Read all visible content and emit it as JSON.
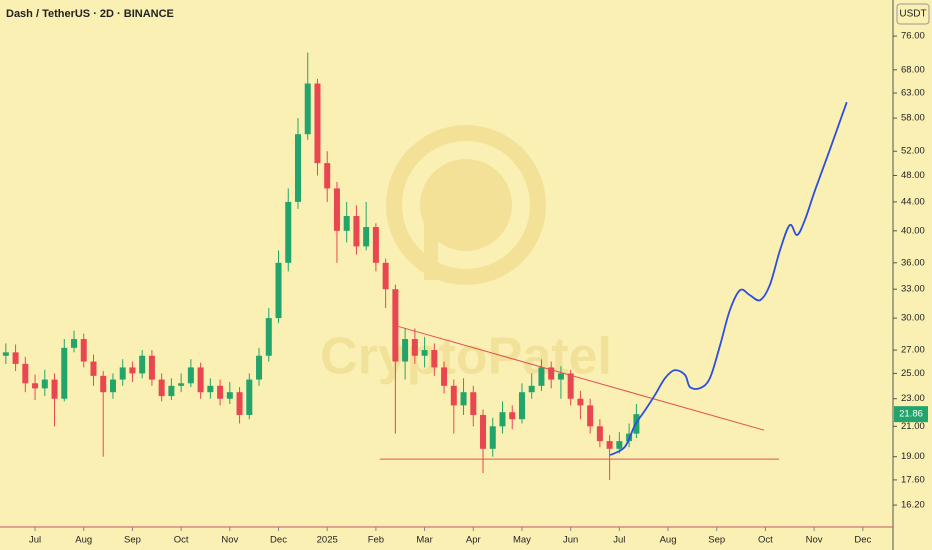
{
  "chart_data": {
    "type": "candlestick",
    "title": "Dash / TetherUS · 2D · BINANCE",
    "currency": "USDT",
    "watermark": "CryptoPatel",
    "log_scale": true,
    "up_color": "#22a46b",
    "down_color": "#e8474f",
    "x": [
      -0.6,
      -0.4,
      -0.2,
      0.0,
      0.2,
      0.4,
      0.6,
      0.8,
      1.0,
      1.2,
      1.4,
      1.6,
      1.8,
      2.0,
      2.2,
      2.4,
      2.6,
      2.8,
      3.0,
      3.2,
      3.4,
      3.6,
      3.8,
      4.0,
      4.2,
      4.4,
      4.6,
      4.8,
      5.0,
      5.2,
      5.4,
      5.6,
      5.8,
      6.0,
      6.2,
      6.4,
      6.6,
      6.8,
      7.0,
      7.2,
      7.4,
      7.6,
      7.8,
      8.0,
      8.2,
      8.4,
      8.6,
      8.8,
      9.0,
      9.2,
      9.4,
      9.6,
      9.8,
      10.0,
      10.2,
      10.4,
      10.6,
      10.8,
      11.0,
      11.2,
      11.4,
      11.6,
      11.8,
      12.0,
      12.2,
      12.35
    ],
    "open": [
      26.5,
      26.8,
      25.8,
      24.2,
      23.8,
      24.5,
      23.0,
      27.2,
      28.0,
      26.0,
      24.8,
      23.5,
      24.5,
      25.5,
      25.0,
      26.5,
      24.5,
      23.2,
      24.0,
      24.2,
      25.5,
      23.5,
      24.0,
      23.0,
      23.5,
      21.8,
      24.5,
      26.5,
      30.0,
      36.0,
      44.0,
      55.0,
      65.0,
      50.0,
      46.0,
      40.0,
      42.0,
      38.0,
      40.5,
      36.0,
      33.0,
      26.0,
      28.0,
      26.5,
      27.0,
      25.5,
      24.0,
      22.5,
      23.5,
      21.8,
      19.5,
      21.0,
      22.0,
      21.5,
      23.5,
      24.0,
      25.5,
      24.5,
      25.0,
      23.0,
      22.5,
      21.0,
      20.0,
      19.5,
      20.0,
      20.5
    ],
    "high": [
      27.6,
      27.5,
      26.4,
      24.9,
      25.3,
      25.0,
      28.0,
      28.8,
      28.5,
      26.6,
      25.2,
      25.0,
      26.2,
      26.0,
      27.0,
      27.0,
      25.0,
      24.6,
      25.0,
      26.2,
      25.9,
      24.6,
      24.5,
      24.3,
      23.9,
      25.0,
      27.2,
      31.0,
      37.5,
      46.0,
      58.0,
      72.0,
      66.0,
      52.0,
      47.0,
      44.0,
      43.5,
      44.0,
      41.0,
      36.5,
      33.5,
      29.0,
      29.0,
      28.2,
      27.6,
      26.0,
      24.5,
      24.6,
      24.0,
      22.2,
      21.6,
      22.8,
      22.5,
      24.2,
      25.0,
      26.2,
      26.0,
      25.6,
      25.3,
      23.6,
      23.0,
      21.5,
      20.4,
      20.6,
      21.2,
      22.6
    ],
    "low": [
      25.8,
      25.2,
      23.5,
      22.9,
      23.2,
      21.0,
      22.8,
      26.8,
      25.5,
      24.0,
      19.0,
      23.0,
      24.0,
      24.3,
      24.6,
      24.0,
      22.8,
      22.9,
      23.5,
      23.9,
      23.0,
      23.0,
      22.5,
      22.6,
      21.2,
      21.5,
      24.0,
      26.0,
      29.5,
      35.0,
      43.0,
      54.0,
      48.0,
      44.0,
      36.0,
      38.5,
      37.0,
      37.5,
      35.0,
      31.0,
      20.5,
      24.5,
      25.8,
      25.5,
      24.8,
      23.4,
      20.5,
      21.8,
      21.0,
      18.0,
      19.0,
      20.5,
      20.8,
      21.2,
      23.0,
      23.6,
      23.8,
      23.0,
      22.5,
      21.5,
      20.5,
      19.6,
      17.6,
      19.2,
      19.6,
      20.2
    ],
    "close": [
      26.8,
      25.8,
      24.2,
      23.8,
      24.5,
      23.0,
      27.2,
      28.0,
      26.0,
      24.8,
      23.5,
      24.5,
      25.5,
      25.0,
      26.5,
      24.5,
      23.2,
      24.0,
      24.2,
      25.5,
      23.5,
      24.0,
      23.0,
      23.5,
      21.8,
      24.5,
      26.5,
      30.0,
      36.0,
      44.0,
      55.0,
      65.0,
      50.0,
      46.0,
      40.0,
      42.0,
      38.0,
      40.5,
      36.0,
      33.0,
      26.0,
      28.0,
      26.5,
      27.0,
      25.5,
      24.0,
      22.5,
      23.5,
      21.8,
      19.5,
      21.0,
      22.0,
      21.5,
      23.5,
      24.0,
      25.5,
      24.5,
      25.0,
      23.0,
      22.5,
      21.0,
      20.0,
      19.5,
      20.0,
      20.5,
      21.86
    ],
    "last_price": 21.86,
    "trendlines": [
      {
        "x": [
          7.45,
          14.97
        ],
        "y": [
          29.2,
          20.74
        ],
        "color": "#e05252"
      },
      {
        "x": [
          7.08,
          15.28
        ],
        "y": [
          18.85,
          18.85
        ],
        "color": "#e05252"
      }
    ],
    "projection": {
      "color": "#2a4fe0",
      "x": [
        11.81,
        12.11,
        12.32,
        12.53,
        12.73,
        12.94,
        13.14,
        13.35,
        13.45,
        13.66,
        13.86,
        14.07,
        14.27,
        14.48,
        14.68,
        14.89,
        15.09,
        15.3,
        15.5,
        15.65,
        15.81,
        16.02,
        16.32,
        16.67
      ],
      "y": [
        19.1,
        19.61,
        21.08,
        22.15,
        23.28,
        24.62,
        25.27,
        24.87,
        23.9,
        23.82,
        24.62,
        27.45,
        30.8,
        32.9,
        32.36,
        31.83,
        33.45,
        37.54,
        40.77,
        39.45,
        41.45,
        45.75,
        52.2,
        61.13
      ]
    },
    "xlim": [
      -0.72,
      17.62
    ],
    "xticks": [
      {
        "value": 0,
        "label": "Jul"
      },
      {
        "value": 1,
        "label": "Aug"
      },
      {
        "value": 2,
        "label": "Sep"
      },
      {
        "value": 3,
        "label": "Oct"
      },
      {
        "value": 4,
        "label": "Nov"
      },
      {
        "value": 5,
        "label": "Dec"
      },
      {
        "value": 6,
        "label": "2025"
      },
      {
        "value": 7,
        "label": "Feb"
      },
      {
        "value": 8,
        "label": "Mar"
      },
      {
        "value": 9,
        "label": "Apr"
      },
      {
        "value": 10,
        "label": "May"
      },
      {
        "value": 11,
        "label": "Jun"
      },
      {
        "value": 12,
        "label": "Jul"
      },
      {
        "value": 13,
        "label": "Aug"
      },
      {
        "value": 14,
        "label": "Sep"
      },
      {
        "value": 15,
        "label": "Oct"
      },
      {
        "value": 16,
        "label": "Nov"
      },
      {
        "value": 17,
        "label": "Dec"
      }
    ],
    "ylim": [
      15.07,
      85.6
    ],
    "yticks": [
      {
        "value": 76,
        "label": "76.00"
      },
      {
        "value": 68,
        "label": "68.00"
      },
      {
        "value": 63,
        "label": "63.00"
      },
      {
        "value": 58,
        "label": "58.00"
      },
      {
        "value": 52,
        "label": "52.00"
      },
      {
        "value": 48,
        "label": "48.00"
      },
      {
        "value": 44,
        "label": "44.00"
      },
      {
        "value": 40,
        "label": "40.00"
      },
      {
        "value": 36,
        "label": "36.00"
      },
      {
        "value": 33,
        "label": "33.00"
      },
      {
        "value": 30,
        "label": "30.00"
      },
      {
        "value": 27,
        "label": "27.00"
      },
      {
        "value": 25,
        "label": "25.00"
      },
      {
        "value": 23,
        "label": "23.00"
      },
      {
        "value": 21,
        "label": "21.00"
      },
      {
        "value": 19,
        "label": "19.00"
      },
      {
        "value": 17.6,
        "label": "17.60"
      },
      {
        "value": 16.2,
        "label": "16.20"
      }
    ]
  }
}
